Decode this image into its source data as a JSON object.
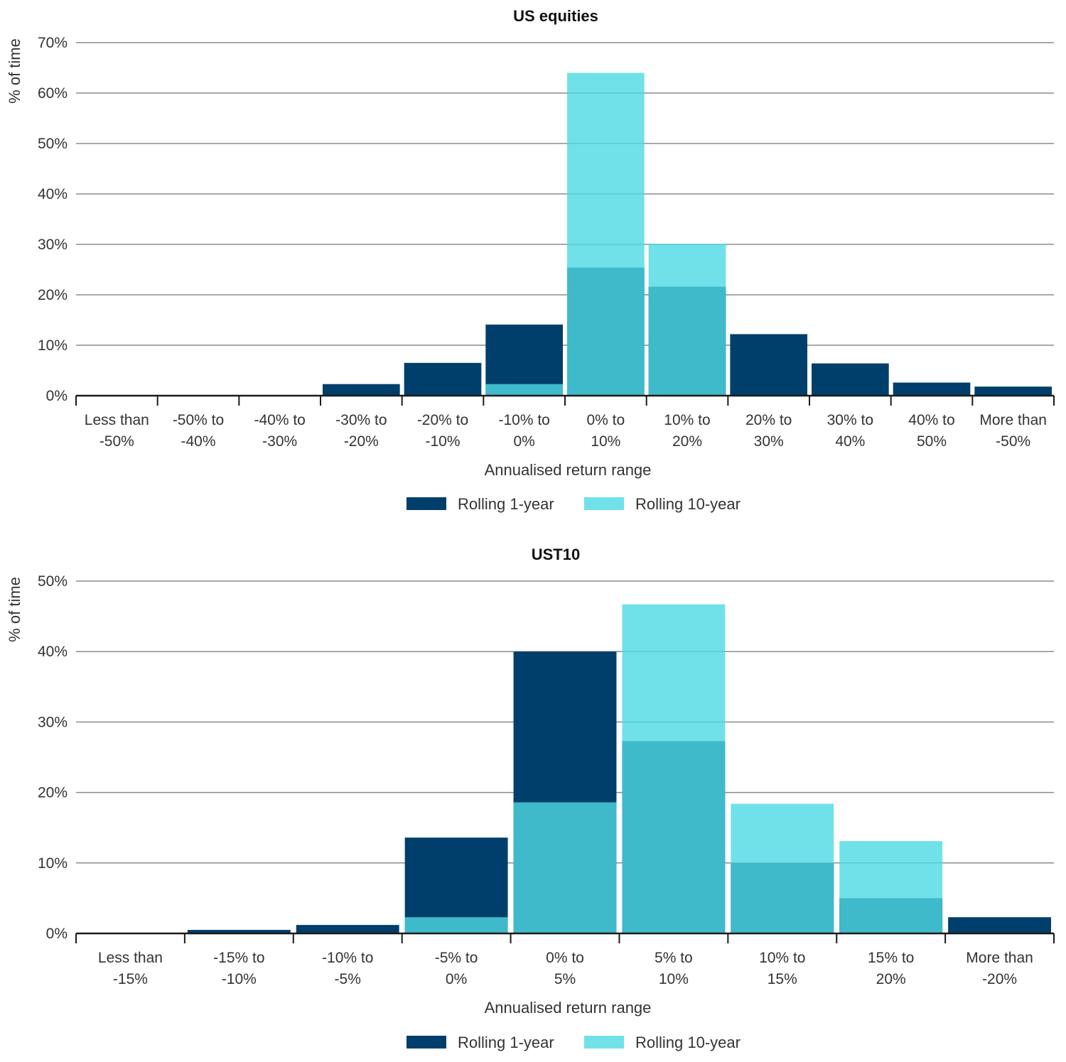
{
  "colors": {
    "series1": "#003f6b",
    "series2": "#4dd9e3",
    "grid": "#8c8c8c",
    "axis": "#1a1a1a"
  },
  "chart_data": [
    {
      "type": "bar",
      "title": "US equities",
      "xlabel": "Annualised return range",
      "ylabel": "% of time",
      "ylim": [
        0,
        70
      ],
      "yticks": [
        "0%",
        "10%",
        "20%",
        "30%",
        "40%",
        "50%",
        "60%",
        "70%"
      ],
      "categories": [
        [
          "Less than",
          "-50%"
        ],
        [
          "-50% to",
          "-40%"
        ],
        [
          "-40% to",
          "-30%"
        ],
        [
          "-30% to",
          "-20%"
        ],
        [
          "-20% to",
          "-10%"
        ],
        [
          "-10% to",
          "0%"
        ],
        [
          "0% to",
          "10%"
        ],
        [
          "10% to",
          "20%"
        ],
        [
          "20% to",
          "30%"
        ],
        [
          "30% to",
          "40%"
        ],
        [
          "40% to",
          "50%"
        ],
        [
          "More than",
          "-50%"
        ]
      ],
      "series": [
        {
          "name": "Rolling 1-year",
          "values": [
            0,
            0,
            0,
            2.3,
            6.5,
            14.1,
            25.4,
            21.6,
            12.2,
            6.4,
            2.6,
            1.8
          ]
        },
        {
          "name": "Rolling 10-year",
          "values": [
            0,
            0,
            0,
            0,
            0,
            2.3,
            64.0,
            30.1,
            0,
            0,
            0,
            0
          ]
        }
      ],
      "grid": true,
      "legend": "bottom-center"
    },
    {
      "type": "bar",
      "title": "UST10",
      "xlabel": "Annualised return range",
      "ylabel": "% of time",
      "ylim": [
        0,
        50
      ],
      "yticks": [
        "0%",
        "10%",
        "20%",
        "30%",
        "40%",
        "50%"
      ],
      "categories": [
        [
          "Less than",
          "-15%"
        ],
        [
          "-15% to",
          "-10%"
        ],
        [
          "-10% to",
          "-5%"
        ],
        [
          "-5% to",
          "0%"
        ],
        [
          "0% to",
          "5%"
        ],
        [
          "5% to",
          "10%"
        ],
        [
          "10% to",
          "15%"
        ],
        [
          "15% to",
          "20%"
        ],
        [
          "More than",
          "-20%"
        ]
      ],
      "series": [
        {
          "name": "Rolling 1-year",
          "values": [
            0,
            0.5,
            1.2,
            13.6,
            40.0,
            27.3,
            10.0,
            5.0,
            2.3
          ]
        },
        {
          "name": "Rolling 10-year",
          "values": [
            0,
            0,
            0,
            2.3,
            18.6,
            46.7,
            18.4,
            13.1,
            0
          ]
        }
      ],
      "grid": true,
      "legend": "bottom-center"
    }
  ]
}
